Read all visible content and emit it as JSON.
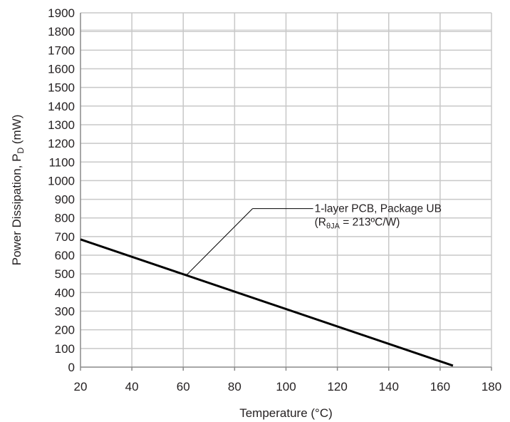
{
  "chart_data": {
    "type": "line",
    "xlabel": "Temperature (°C)",
    "ylabel_main": "Power Dissipation, P",
    "ylabel_sub": "D",
    "ylabel_unit": " (mW)",
    "xlim": [
      20,
      180
    ],
    "ylim": [
      0,
      1900
    ],
    "x_ticks": [
      20,
      40,
      60,
      80,
      100,
      120,
      140,
      160,
      180
    ],
    "y_ticks": [
      0,
      100,
      200,
      300,
      400,
      500,
      600,
      700,
      800,
      900,
      1000,
      1100,
      1200,
      1300,
      1400,
      1500,
      1600,
      1700,
      1800,
      1900
    ],
    "grid": true,
    "series": [
      {
        "x": [
          20,
          165
        ],
        "y": [
          685,
          8
        ]
      }
    ],
    "annotation": {
      "line1": "1-layer PCB, Package UB",
      "line2_pre": "(R",
      "line2_sub": "θJA",
      "line2_post": " = 213ºC/W)",
      "pointer_x": 61,
      "pointer_y": 490,
      "elbow_x": 87,
      "elbow_y": 850
    },
    "colors": {
      "grid": "#c8c8c8",
      "line": "#000000",
      "text": "#231f20"
    }
  }
}
